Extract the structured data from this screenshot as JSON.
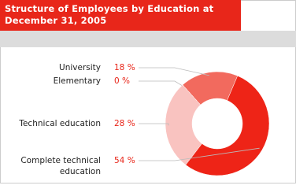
{
  "chart_data": {
    "type": "donut",
    "title": "Structure of Employees by Education at December 31, 2005",
    "categories": [
      "University",
      "Elementary",
      "Technical education",
      "Complete technical education"
    ],
    "values": [
      18,
      0,
      28,
      54
    ],
    "value_labels": [
      "18 %",
      "0 %",
      "28 %",
      "54 %"
    ],
    "colors": [
      "#f26a5e",
      "#b01a10",
      "#f9c3c0",
      "#ee2417"
    ]
  }
}
